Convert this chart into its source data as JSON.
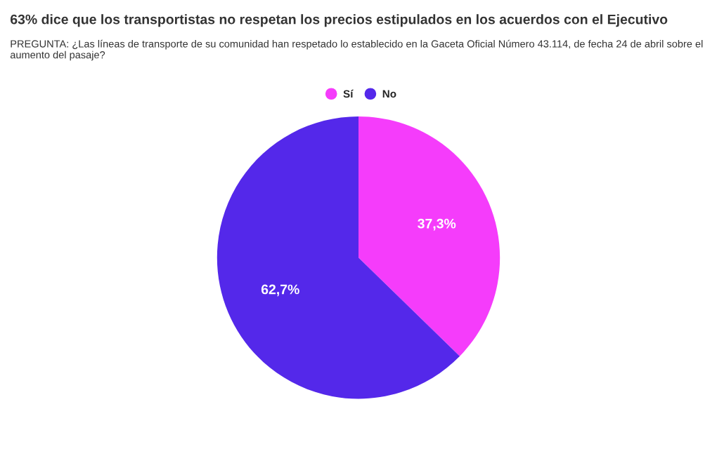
{
  "chart_data": {
    "type": "pie",
    "title": "63% dice que los transportistas no respetan los precios estipulados en los acuerdos con el Ejecutivo",
    "subtitle": "PREGUNTA: ¿Las líneas de transporte de su comunidad han respetado lo establecido en la Gaceta Oficial Número 43.114, de fecha 24 de abril sobre el aumento del pasaje?",
    "categories": [
      "Sí",
      "No"
    ],
    "values": [
      37.3,
      62.7
    ],
    "colors": [
      "#f53cfb",
      "#5428ea"
    ],
    "value_labels": [
      "37,3%",
      "62,7%"
    ],
    "legend": "top"
  }
}
